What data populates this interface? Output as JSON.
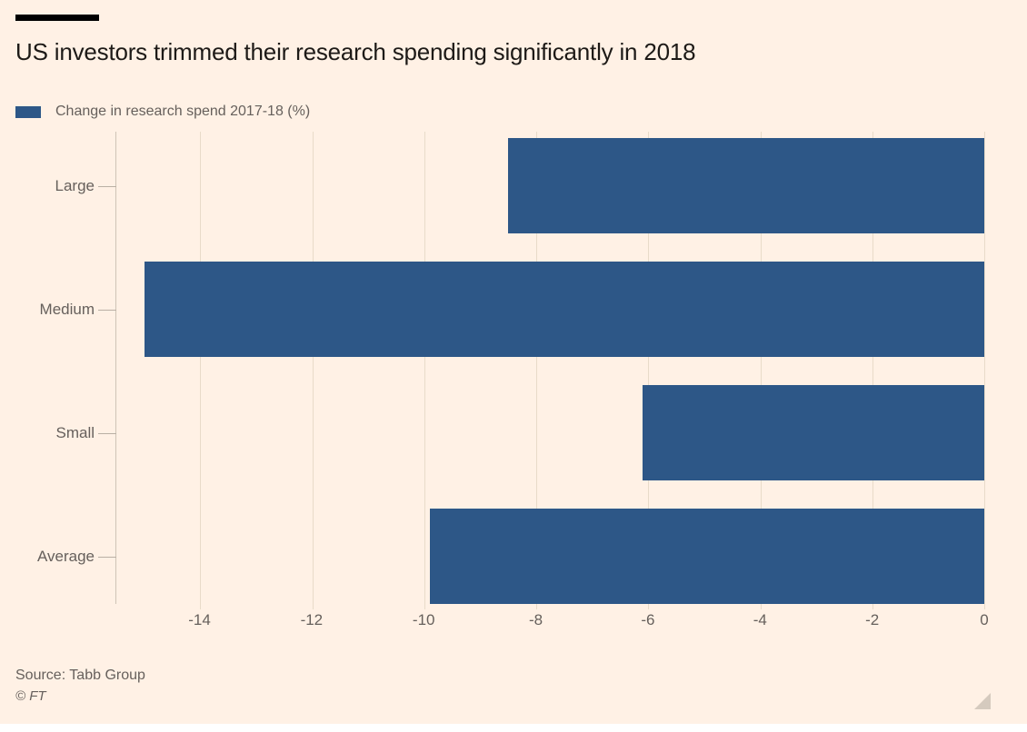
{
  "header": {
    "title": "US investors trimmed their research spending significantly in 2018"
  },
  "legend": {
    "label": "Change in research spend 2017-18 (%)"
  },
  "chart_data": {
    "type": "bar",
    "orientation": "horizontal",
    "title": "US investors trimmed their research spending significantly in 2018",
    "series_name": "Change in research spend 2017-18 (%)",
    "categories": [
      "Large",
      "Medium",
      "Small",
      "Average"
    ],
    "values": [
      -8.5,
      -15,
      -6.1,
      -9.9
    ],
    "xlabel": "",
    "ylabel": "",
    "xlim": [
      -15.5,
      0
    ],
    "x_ticks": [
      -14,
      -12,
      -10,
      -8,
      -6,
      -4,
      -2,
      0
    ],
    "grid": true,
    "legend_position": "top-left",
    "bar_color": "#2d5787"
  },
  "footer": {
    "source": "Source: Tabb Group",
    "copyright": "© FT"
  },
  "colors": {
    "background": "#fff1e5",
    "bar": "#2d5787",
    "title_text": "#1d1a17",
    "muted_text": "#66605c",
    "gridline": "#e8dbc9",
    "axis_line": "#cfc4b6",
    "top_rule": "#000000",
    "resize_handle": "#d5cabe"
  }
}
